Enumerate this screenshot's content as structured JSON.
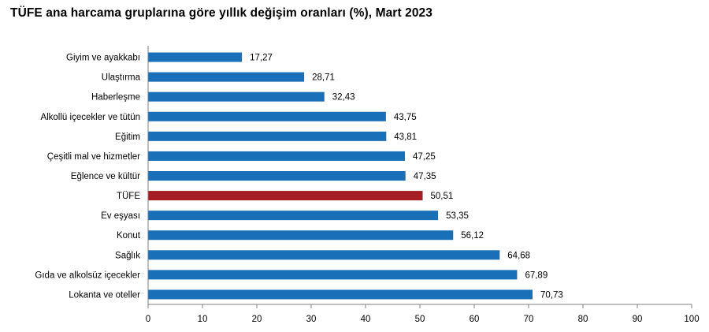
{
  "chart_data": {
    "type": "bar",
    "orientation": "horizontal",
    "title": "TÜFE ana harcama gruplarına göre yıllık değişim oranları (%), Mart 2023",
    "categories": [
      "Giyim ve ayakkabı",
      "Ulaştırma",
      "Haberleşme",
      "Alkollü içecekler ve tütün",
      "Eğitim",
      "Çeşitli mal ve hizmetler",
      "Eğlence ve kültür",
      "TÜFE",
      "Ev eşyası",
      "Konut",
      "Sağlık",
      "Gıda ve alkolsüz içecekler",
      "Lokanta ve oteller"
    ],
    "values": [
      17.27,
      28.71,
      32.43,
      43.75,
      43.81,
      47.25,
      47.35,
      50.51,
      53.35,
      56.12,
      64.68,
      67.89,
      70.73
    ],
    "value_labels": [
      "17,27",
      "28,71",
      "32,43",
      "43,75",
      "43,81",
      "47,25",
      "47,35",
      "50,51",
      "53,35",
      "56,12",
      "64,68",
      "67,89",
      "70,73"
    ],
    "xlim": [
      0,
      100
    ],
    "xticks": [
      0,
      10,
      20,
      30,
      40,
      50,
      60,
      70,
      80,
      90,
      100
    ],
    "grid": false,
    "legend": "none",
    "colors": {
      "default": "#1a6fb9",
      "highlight": "#a51d22",
      "highlight_category": "TÜFE"
    }
  }
}
